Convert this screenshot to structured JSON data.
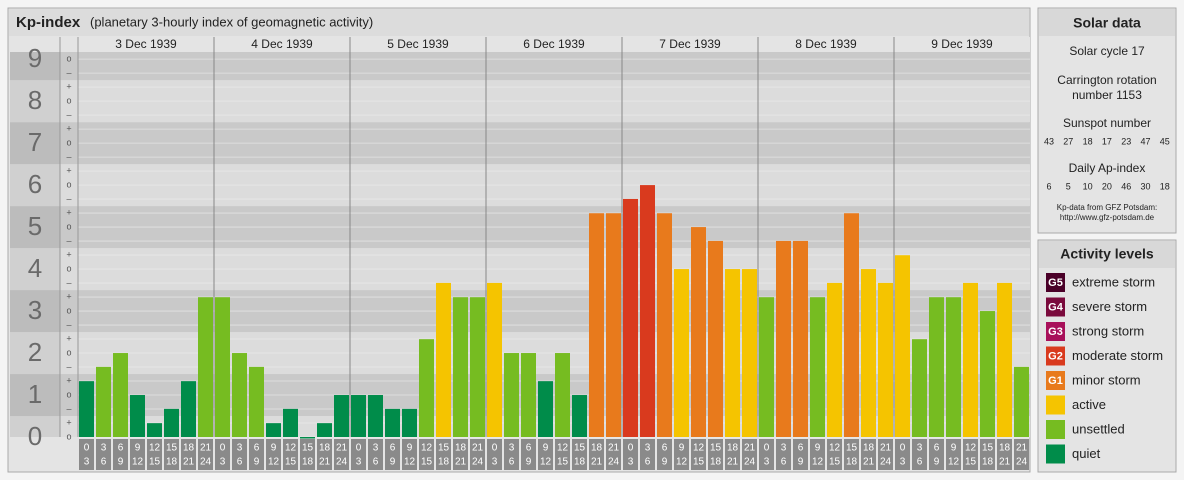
{
  "chart_data": {
    "type": "bar",
    "title": "Kp-index",
    "subtitle": "(planetary 3-hourly index of geomagnetic activity)",
    "days": [
      "3 Dec 1939",
      "4 Dec 1939",
      "5 Dec 1939",
      "6 Dec 1939",
      "7 Dec 1939",
      "8 Dec 1939",
      "9 Dec 1939"
    ],
    "hours_start": [
      "0",
      "3",
      "6",
      "9",
      "12",
      "15",
      "18",
      "21"
    ],
    "hours_end": [
      "3",
      "6",
      "9",
      "12",
      "15",
      "18",
      "21",
      "24"
    ],
    "values": [
      1.33,
      1.67,
      2,
      1,
      0.33,
      0.67,
      1.33,
      3.33,
      3.33,
      2,
      1.67,
      0.33,
      0.67,
      0,
      0.33,
      1,
      1,
      1,
      0.67,
      0.67,
      2.33,
      3.67,
      3.33,
      3.33,
      3.67,
      2,
      2,
      1.33,
      2,
      1,
      5.33,
      5.33,
      5.67,
      6,
      5.33,
      4,
      5,
      4.67,
      4,
      4,
      3.33,
      4.67,
      4.67,
      3.33,
      3.67,
      5.33,
      4,
      3.67,
      4.33,
      2.33,
      3.33,
      3.33,
      3.67,
      3,
      3.67,
      1.67
    ],
    "colors": [
      "#008c4a",
      "#76bc21",
      "#76bc21",
      "#008c4a",
      "#008c4a",
      "#008c4a",
      "#008c4a",
      "#76bc21",
      "#76bc21",
      "#76bc21",
      "#76bc21",
      "#008c4a",
      "#008c4a",
      "#008c4a",
      "#008c4a",
      "#008c4a",
      "#008c4a",
      "#008c4a",
      "#008c4a",
      "#008c4a",
      "#76bc21",
      "#f5c400",
      "#76bc21",
      "#76bc21",
      "#f5c400",
      "#76bc21",
      "#76bc21",
      "#008c4a",
      "#76bc21",
      "#008c4a",
      "#e87a1c",
      "#e87a1c",
      "#d93a1e",
      "#d93a1e",
      "#e87a1c",
      "#f5c400",
      "#e87a1c",
      "#e87a1c",
      "#f5c400",
      "#f5c400",
      "#76bc21",
      "#e87a1c",
      "#e87a1c",
      "#76bc21",
      "#f5c400",
      "#e87a1c",
      "#f5c400",
      "#f5c400",
      "#f5c400",
      "#76bc21",
      "#76bc21",
      "#76bc21",
      "#f5c400",
      "#76bc21",
      "#f5c400",
      "#76bc21"
    ],
    "ylim": [
      0,
      9.17
    ],
    "yticks": [
      0,
      1,
      2,
      3,
      4,
      5,
      6,
      7,
      8,
      9
    ],
    "minor_tick_labels": [
      "–",
      "o",
      "+"
    ],
    "grid": true
  },
  "solar_data": {
    "title": "Solar data",
    "cycle": "Solar cycle 17",
    "carrington": [
      "Carrington rotation",
      "number 1153"
    ],
    "sunspot_label": "Sunspot number",
    "sunspot": [
      43,
      27,
      18,
      17,
      23,
      47,
      45
    ],
    "ap_label": "Daily Ap-index",
    "ap": [
      6,
      5,
      10,
      20,
      46,
      30,
      18
    ],
    "source": [
      "Kp-data from GFZ Potsdam:",
      "http://www.gfz-potsdam.de"
    ]
  },
  "activity_levels": {
    "title": "Activity levels",
    "items": [
      {
        "code": "G5",
        "label": "extreme storm",
        "color": "#4a0028"
      },
      {
        "code": "G4",
        "label": "severe storm",
        "color": "#7a0a3c"
      },
      {
        "code": "G3",
        "label": "strong storm",
        "color": "#a8105a"
      },
      {
        "code": "G2",
        "label": "moderate storm",
        "color": "#d93a1e"
      },
      {
        "code": "G1",
        "label": "minor storm",
        "color": "#e87a1c"
      },
      {
        "label": "active",
        "color": "#f5c400"
      },
      {
        "label": "unsettled",
        "color": "#76bc21"
      },
      {
        "label": "quiet",
        "color": "#008c4a"
      }
    ]
  }
}
